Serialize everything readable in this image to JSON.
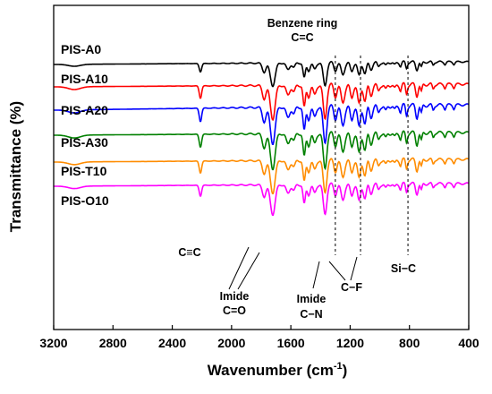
{
  "chart_data": {
    "type": "line",
    "xlabel_main": "Wavenumber (cm",
    "xlabel_sup": "-1",
    "xlabel_tail": ")",
    "ylabel": "Transmittance (%)",
    "xlim": [
      3200,
      400
    ],
    "x_reversed": true,
    "y_ticks_shown": false,
    "x_ticks": [
      "3200",
      "2800",
      "2400",
      "2000",
      "1600",
      "1200",
      "800",
      "400"
    ],
    "x_tick_values": [
      3200,
      2800,
      2400,
      2000,
      1600,
      1200,
      800,
      400
    ],
    "series": [
      {
        "name": "PIS-A0",
        "color": "#000000"
      },
      {
        "name": "PIS-A10",
        "color": "#ff0000"
      },
      {
        "name": "PIS-A20",
        "color": "#0000ff"
      },
      {
        "name": "PIS-A30",
        "color": "#008000"
      },
      {
        "name": "PIS-T10",
        "color": "#ff8c00"
      },
      {
        "name": "PIS-O10",
        "color": "#ff00ff"
      }
    ],
    "reference_lines_x": [
      1300,
      1130,
      810
    ],
    "annotations": {
      "benzene_line1": "Benzene ring",
      "benzene_line2": "C=C",
      "alkyne": "C≡C",
      "imide_co_line1": "Imide",
      "imide_co_line2": "C=O",
      "imide_cn_line1": "Imide",
      "imide_cn_line2": "C−N",
      "cf": "C−F",
      "sic": "Si−C"
    }
  }
}
